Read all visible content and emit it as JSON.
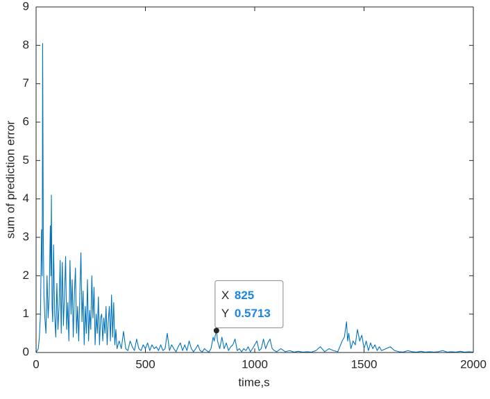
{
  "chart_data": {
    "type": "line",
    "xlabel": "time,s",
    "ylabel": "sum of prediction error",
    "xlim": [
      0,
      2000
    ],
    "xticks": [
      0,
      500,
      1000,
      1500,
      2000
    ],
    "ylim": [
      0,
      9
    ],
    "yticks": [
      0,
      1,
      2,
      3,
      4,
      5,
      6,
      7,
      8,
      9
    ],
    "grid": false,
    "box": true,
    "x": [
      0,
      10,
      15,
      20,
      25,
      28,
      30,
      33,
      36,
      40,
      45,
      50,
      55,
      60,
      65,
      68,
      70,
      73,
      76,
      80,
      85,
      90,
      95,
      100,
      105,
      110,
      115,
      118,
      120,
      125,
      130,
      135,
      140,
      145,
      150,
      155,
      160,
      165,
      170,
      175,
      180,
      185,
      190,
      195,
      200,
      205,
      210,
      215,
      220,
      225,
      230,
      235,
      240,
      245,
      250,
      255,
      260,
      265,
      270,
      275,
      280,
      285,
      290,
      295,
      300,
      305,
      310,
      315,
      320,
      325,
      330,
      335,
      340,
      345,
      350,
      355,
      360,
      365,
      370,
      380,
      390,
      400,
      410,
      420,
      430,
      440,
      450,
      460,
      470,
      480,
      490,
      500,
      510,
      520,
      530,
      540,
      550,
      560,
      570,
      580,
      590,
      600,
      610,
      620,
      630,
      640,
      650,
      660,
      670,
      680,
      690,
      700,
      710,
      720,
      730,
      740,
      750,
      760,
      770,
      780,
      790,
      800,
      810,
      815,
      820,
      825,
      830,
      840,
      850,
      860,
      870,
      880,
      890,
      900,
      910,
      920,
      930,
      940,
      950,
      960,
      970,
      980,
      990,
      1000,
      1010,
      1020,
      1030,
      1040,
      1050,
      1060,
      1070,
      1080,
      1090,
      1100,
      1120,
      1140,
      1160,
      1180,
      1200,
      1220,
      1240,
      1260,
      1280,
      1300,
      1320,
      1340,
      1360,
      1380,
      1400,
      1410,
      1420,
      1425,
      1430,
      1440,
      1450,
      1460,
      1470,
      1480,
      1490,
      1500,
      1510,
      1520,
      1530,
      1540,
      1550,
      1560,
      1570,
      1580,
      1600,
      1620,
      1640,
      1660,
      1680,
      1700,
      1720,
      1740,
      1760,
      1780,
      1800,
      1820,
      1840,
      1860,
      1880,
      1900,
      1920,
      1940,
      1960,
      1980,
      2000
    ],
    "series": [
      {
        "color": "#0072bd",
        "values": [
          0,
          0.1,
          0.4,
          1.0,
          3.2,
          2.0,
          8.05,
          3.0,
          1.5,
          0.9,
          0.5,
          2.0,
          0.9,
          1.5,
          3.3,
          2.0,
          4.1,
          1.2,
          0.8,
          2.8,
          1.0,
          0.4,
          1.8,
          0.6,
          1.2,
          2.4,
          0.5,
          1.8,
          2.35,
          0.7,
          1.5,
          2.5,
          0.6,
          1.3,
          0.3,
          2.4,
          1.0,
          1.9,
          0.4,
          1.5,
          2.2,
          0.5,
          1.2,
          0.3,
          1.5,
          2.6,
          0.8,
          1.6,
          0.2,
          1.2,
          0.5,
          1.9,
          0.3,
          1.1,
          0.6,
          2.0,
          0.9,
          1.7,
          0.2,
          1.0,
          0.5,
          1.45,
          0.2,
          0.9,
          1.0,
          0.3,
          0.9,
          0.5,
          1.2,
          0.2,
          0.8,
          1.2,
          0.3,
          1.5,
          0.4,
          1.3,
          0.2,
          0.6,
          0.1,
          0.3,
          0.1,
          0.55,
          0.1,
          0.05,
          0.3,
          0.15,
          0.05,
          0.35,
          0.1,
          0.05,
          0.2,
          0.1,
          0.25,
          0.05,
          0.2,
          0.1,
          0.15,
          0.05,
          0.2,
          0.05,
          0.1,
          0.5,
          0.05,
          0.2,
          0.1,
          0.02,
          0.15,
          0.25,
          0.05,
          0.2,
          0.05,
          0.3,
          0.1,
          0.02,
          0.1,
          0.2,
          0.05,
          0.02,
          0.1,
          0.05,
          0.01,
          0.1,
          0.4,
          0.3,
          0.45,
          0.5713,
          0.3,
          0.1,
          0.4,
          0.1,
          0.25,
          0.05,
          0.15,
          0.2,
          0.35,
          0.05,
          0.1,
          0.02,
          0.1,
          0.05,
          0.15,
          0.02,
          0.1,
          0.2,
          0.3,
          0.05,
          0.1,
          0.35,
          0.1,
          0.25,
          0.35,
          0.1,
          0.05,
          0.02,
          0.1,
          0.02,
          0.05,
          0.01,
          0.03,
          0.01,
          0.02,
          0.01,
          0.05,
          0.15,
          0.02,
          0.1,
          0.05,
          0.02,
          0.3,
          0.4,
          0.8,
          0.3,
          0.5,
          0.1,
          0.3,
          0.2,
          0.6,
          0.3,
          0.45,
          0.1,
          0.3,
          0.05,
          0.25,
          0.1,
          0.2,
          0.05,
          0.15,
          0.05,
          0.1,
          0.15,
          0.05,
          0.02,
          0.01,
          0.05,
          0.02,
          0.01,
          0.03,
          0.01,
          0.02,
          0.01,
          0.02,
          0.05,
          0.01,
          0.02,
          0.01,
          0.03,
          0.01,
          0.02,
          0.01
        ]
      }
    ],
    "datatip": {
      "x_label": "X",
      "x": 825,
      "y_label": "Y",
      "y": 0.5713
    }
  }
}
